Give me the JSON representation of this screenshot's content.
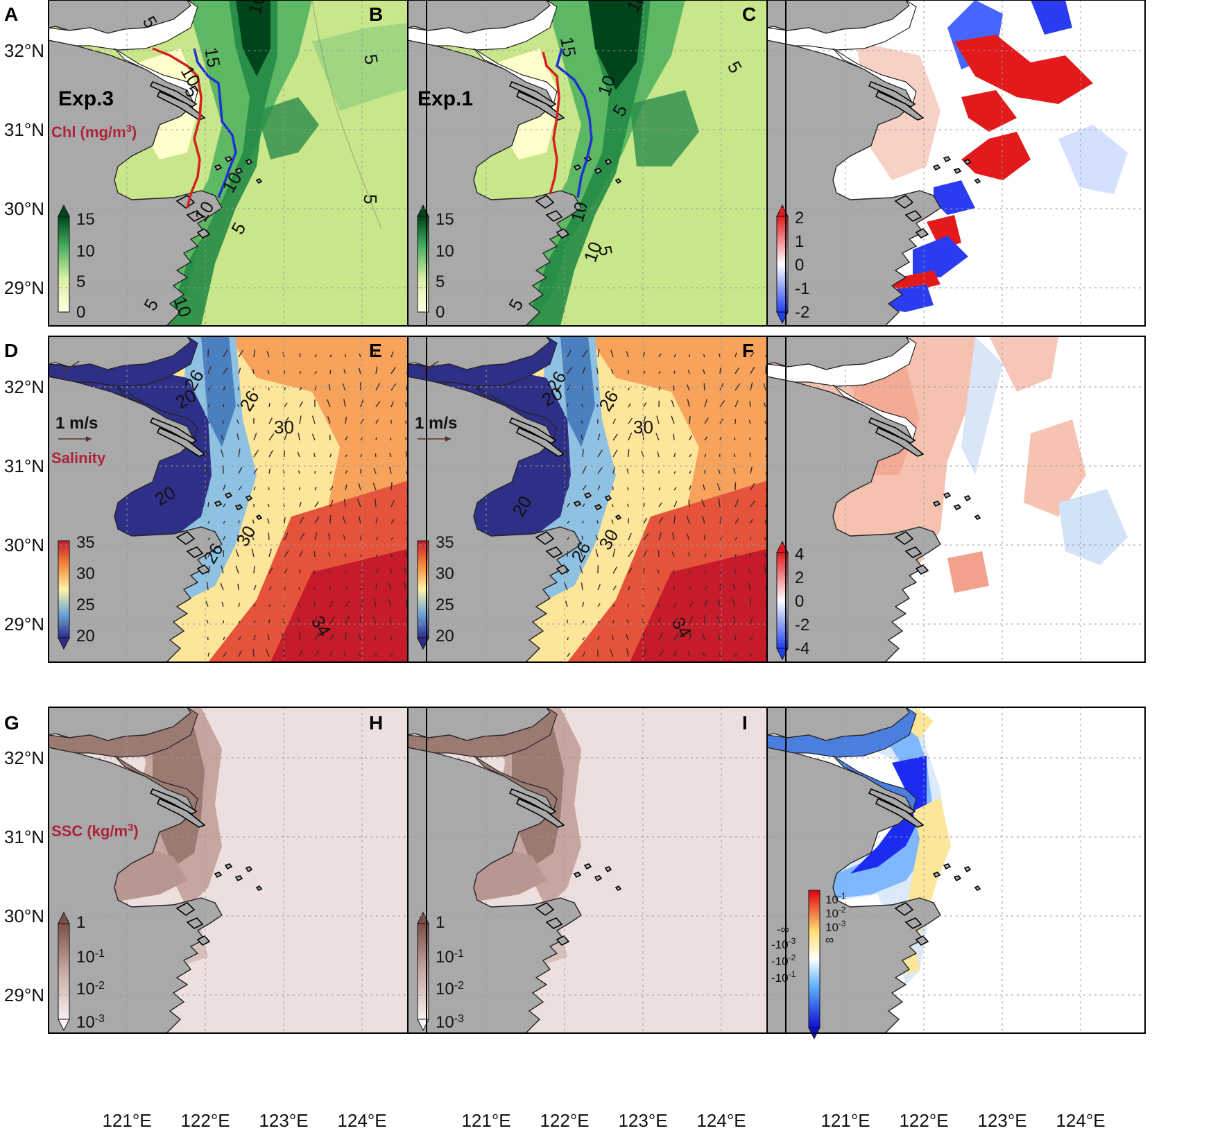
{
  "figure": {
    "lon_ticks": [
      "121°E",
      "122°E",
      "123°E",
      "124°E"
    ],
    "lat_ticks": [
      "32°N",
      "31°N",
      "30°N",
      "29°N"
    ]
  },
  "panels": {
    "A": {
      "letter": "A",
      "experiment": "Exp.3",
      "variable": "Chl (mg/m",
      "variable_sup": "3",
      "variable_tail": ")",
      "colorbar_ticks": [
        "15",
        "10",
        "5",
        "0"
      ],
      "contour_labels": [
        "5",
        "10",
        "15",
        "5",
        "10",
        "5",
        "10",
        "5",
        "10",
        "5",
        "5",
        "10",
        "10",
        "5"
      ]
    },
    "B": {
      "letter": "B",
      "experiment": "Exp.1",
      "colorbar_ticks": [
        "15",
        "10",
        "5",
        "0"
      ],
      "contour_labels": [
        "10",
        "15",
        "5",
        "10",
        "5",
        "10",
        "5",
        "10",
        "5",
        "5"
      ]
    },
    "C": {
      "letter": "C",
      "colorbar_ticks": [
        "2",
        "1",
        "0",
        "-1",
        "-2"
      ]
    },
    "D": {
      "letter": "D",
      "variable": "Salinity",
      "scale_label": "1 m/s",
      "colorbar_ticks": [
        "35",
        "30",
        "25",
        "20"
      ],
      "contour_labels": [
        "26",
        "20",
        "26",
        "30",
        "20",
        "30",
        "26",
        "34"
      ]
    },
    "E": {
      "letter": "E",
      "scale_label": "1 m/s",
      "colorbar_ticks": [
        "35",
        "30",
        "25",
        "20"
      ],
      "contour_labels": [
        "26",
        "20",
        "26",
        "30",
        "20",
        "26",
        "30",
        "34"
      ]
    },
    "F": {
      "letter": "F",
      "colorbar_ticks": [
        "4",
        "2",
        "0",
        "-2",
        "-4"
      ]
    },
    "G": {
      "letter": "G",
      "variable": "SSC (kg/m",
      "variable_sup": "3",
      "variable_tail": ")",
      "colorbar_ticks": [
        {
          "base": "1",
          "exp": ""
        },
        {
          "base": "10",
          "exp": "-1"
        },
        {
          "base": "10",
          "exp": "-2"
        },
        {
          "base": "10",
          "exp": "-3"
        }
      ]
    },
    "H": {
      "letter": "H",
      "colorbar_ticks": [
        {
          "base": "1",
          "exp": ""
        },
        {
          "base": "10",
          "exp": "-1"
        },
        {
          "base": "10",
          "exp": "-2"
        },
        {
          "base": "10",
          "exp": "-3"
        }
      ]
    },
    "I": {
      "letter": "I",
      "colorbar_ticks": [
        {
          "base": "10",
          "exp": "-1"
        },
        {
          "base": "10",
          "exp": "-2"
        },
        {
          "base": "10",
          "exp": "-3"
        },
        {
          "base": "∞",
          "exp": ""
        },
        {
          "base": "-∞",
          "exp": ""
        },
        {
          "base": "-10",
          "exp": "-3"
        },
        {
          "base": "-10",
          "exp": "-2"
        },
        {
          "base": "-10",
          "exp": "-1"
        }
      ]
    }
  },
  "colors": {
    "land": "#a9a9a9",
    "chl_low": "#ffffcc",
    "chl_mid": "#78c679",
    "chl_high": "#00441b",
    "diff_pos": "#e31a1c",
    "diff_neg": "#1f3ff0",
    "sal_low": "#2c2c8a",
    "sal_mid": "#fdf3a8",
    "sal_high": "#c51b2a",
    "ssc_high": "#8c6258",
    "ssc_low": "#efe2e0",
    "red_line": "#d62020",
    "blue_line": "#1f2fd6"
  }
}
